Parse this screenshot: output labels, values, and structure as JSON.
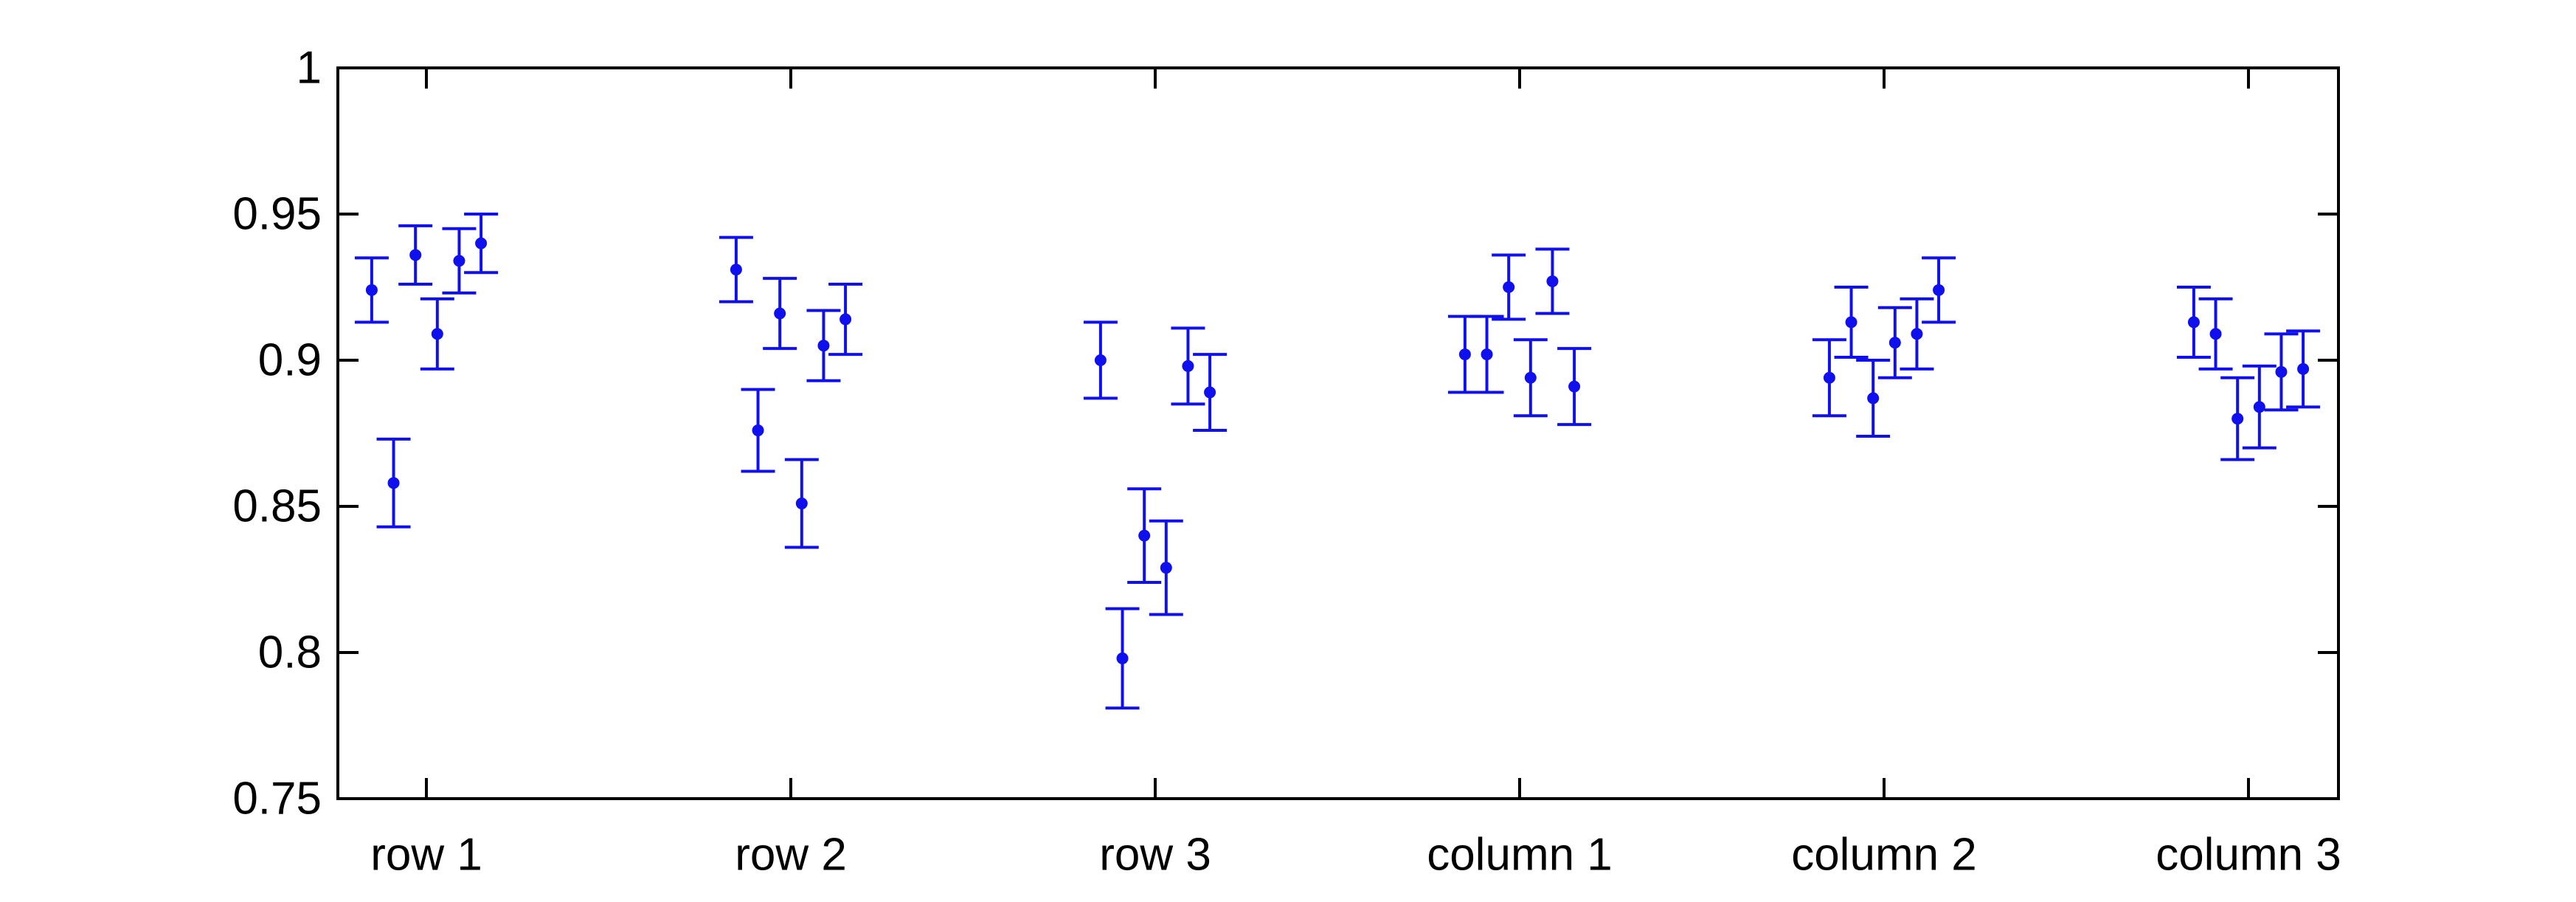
{
  "chart_data": {
    "type": "scatter",
    "title": "",
    "xlabel": "",
    "ylabel": "",
    "categories": [
      "row 1",
      "row 2",
      "row 3",
      "column 1",
      "column 2",
      "column 3"
    ],
    "ylim": [
      0.75,
      1
    ],
    "yticks": [
      "0.75",
      "0.8",
      "0.85",
      "0.9",
      "0.95",
      "1"
    ],
    "grid": false,
    "legend": "none",
    "color": "#1010ee",
    "points": [
      {
        "category": "row 1",
        "offset": -0.15,
        "y": 0.924,
        "err": 0.011
      },
      {
        "category": "row 1",
        "offset": -0.09,
        "y": 0.858,
        "err": 0.015
      },
      {
        "category": "row 1",
        "offset": -0.03,
        "y": 0.936,
        "err": 0.01
      },
      {
        "category": "row 1",
        "offset": 0.03,
        "y": 0.909,
        "err": 0.012
      },
      {
        "category": "row 1",
        "offset": 0.09,
        "y": 0.934,
        "err": 0.011
      },
      {
        "category": "row 1",
        "offset": 0.15,
        "y": 0.94,
        "err": 0.01
      },
      {
        "category": "row 2",
        "offset": -0.15,
        "y": 0.931,
        "err": 0.011
      },
      {
        "category": "row 2",
        "offset": -0.09,
        "y": 0.876,
        "err": 0.014
      },
      {
        "category": "row 2",
        "offset": -0.03,
        "y": 0.916,
        "err": 0.012
      },
      {
        "category": "row 2",
        "offset": 0.03,
        "y": 0.851,
        "err": 0.015
      },
      {
        "category": "row 2",
        "offset": 0.09,
        "y": 0.905,
        "err": 0.012
      },
      {
        "category": "row 2",
        "offset": 0.15,
        "y": 0.914,
        "err": 0.012
      },
      {
        "category": "row 3",
        "offset": -0.15,
        "y": 0.9,
        "err": 0.013
      },
      {
        "category": "row 3",
        "offset": -0.09,
        "y": 0.798,
        "err": 0.017
      },
      {
        "category": "row 3",
        "offset": -0.03,
        "y": 0.84,
        "err": 0.016
      },
      {
        "category": "row 3",
        "offset": 0.03,
        "y": 0.829,
        "err": 0.016
      },
      {
        "category": "row 3",
        "offset": 0.09,
        "y": 0.898,
        "err": 0.013
      },
      {
        "category": "row 3",
        "offset": 0.15,
        "y": 0.889,
        "err": 0.013
      },
      {
        "category": "column 1",
        "offset": -0.15,
        "y": 0.902,
        "err": 0.013
      },
      {
        "category": "column 1",
        "offset": -0.09,
        "y": 0.902,
        "err": 0.013
      },
      {
        "category": "column 1",
        "offset": -0.03,
        "y": 0.925,
        "err": 0.011
      },
      {
        "category": "column 1",
        "offset": 0.03,
        "y": 0.894,
        "err": 0.013
      },
      {
        "category": "column 1",
        "offset": 0.09,
        "y": 0.927,
        "err": 0.011
      },
      {
        "category": "column 1",
        "offset": 0.15,
        "y": 0.891,
        "err": 0.013
      },
      {
        "category": "column 2",
        "offset": -0.15,
        "y": 0.894,
        "err": 0.013
      },
      {
        "category": "column 2",
        "offset": -0.09,
        "y": 0.913,
        "err": 0.012
      },
      {
        "category": "column 2",
        "offset": -0.03,
        "y": 0.887,
        "err": 0.013
      },
      {
        "category": "column 2",
        "offset": 0.03,
        "y": 0.906,
        "err": 0.012
      },
      {
        "category": "column 2",
        "offset": 0.09,
        "y": 0.909,
        "err": 0.012
      },
      {
        "category": "column 2",
        "offset": 0.15,
        "y": 0.924,
        "err": 0.011
      },
      {
        "category": "column 3",
        "offset": -0.15,
        "y": 0.913,
        "err": 0.012
      },
      {
        "category": "column 3",
        "offset": -0.09,
        "y": 0.909,
        "err": 0.012
      },
      {
        "category": "column 3",
        "offset": -0.03,
        "y": 0.88,
        "err": 0.014
      },
      {
        "category": "column 3",
        "offset": 0.03,
        "y": 0.884,
        "err": 0.014
      },
      {
        "category": "column 3",
        "offset": 0.09,
        "y": 0.896,
        "err": 0.013
      },
      {
        "category": "column 3",
        "offset": 0.15,
        "y": 0.897,
        "err": 0.013
      }
    ]
  }
}
